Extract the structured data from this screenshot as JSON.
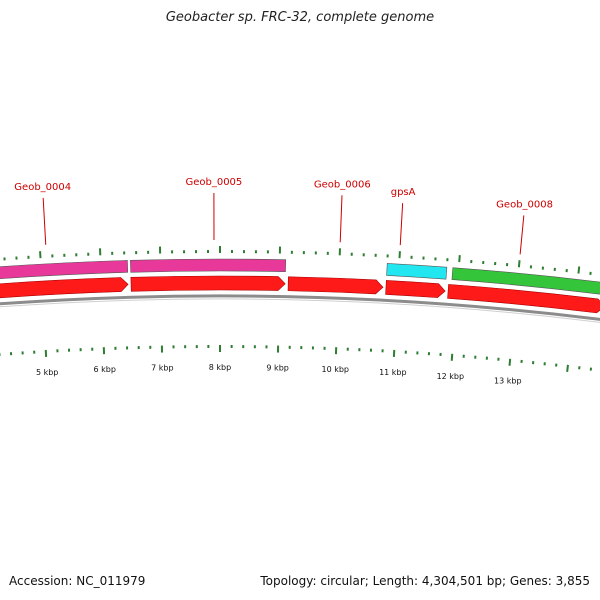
{
  "header": {
    "title": "Geobacter sp. FRC-32, complete genome"
  },
  "footer": {
    "accession": "Accession: NC_011979",
    "summary": "Topology: circular; Length: 4,304,501 bp; Genes: 3,855"
  },
  "colors": {
    "gene_pink": "#e8399a",
    "gene_cyan": "#22e6f0",
    "gene_green": "#35c53a",
    "cds_red": "#ff1a1a",
    "backbone": "#8c8c8c",
    "tick": "#2e7d32",
    "label": "#cc0000"
  },
  "map": {
    "genes": [
      {
        "name": "Geob_0004",
        "start_kbp": 4.1,
        "end_kbp": 6.45,
        "color": "#e8399a",
        "label": true
      },
      {
        "name": "",
        "start_kbp": 6.5,
        "end_kbp": 9.1,
        "color": "#e8399a",
        "label": false
      },
      {
        "name": "Geob_0005",
        "start_kbp": 7.9,
        "end_kbp": 7.9,
        "color": "",
        "label": true
      },
      {
        "name": "Geob_0006",
        "start_kbp": 10.0,
        "end_kbp": 10.0,
        "color": "",
        "label": true
      },
      {
        "name": "gpsA",
        "start_kbp": 10.8,
        "end_kbp": 11.8,
        "color": "#22e6f0",
        "label": true
      },
      {
        "name": "Geob_0008",
        "start_kbp": 11.9,
        "end_kbp": 14.5,
        "color": "#35c53a",
        "label": true
      }
    ],
    "cds": [
      {
        "start_kbp": 4.1,
        "end_kbp": 6.45
      },
      {
        "start_kbp": 6.5,
        "end_kbp": 9.1
      },
      {
        "start_kbp": 9.15,
        "end_kbp": 10.75
      },
      {
        "start_kbp": 10.8,
        "end_kbp": 11.8
      },
      {
        "start_kbp": 11.85,
        "end_kbp": 14.5
      }
    ],
    "kbp_labels": [
      "5 kbp",
      "6 kbp",
      "7 kbp",
      "8 kbp",
      "9 kbp",
      "10 kbp",
      "11 kbp",
      "12 kbp",
      "13 kbp"
    ],
    "kbp_label_values": [
      5,
      6,
      7,
      8,
      9,
      10,
      11,
      12,
      13
    ]
  }
}
